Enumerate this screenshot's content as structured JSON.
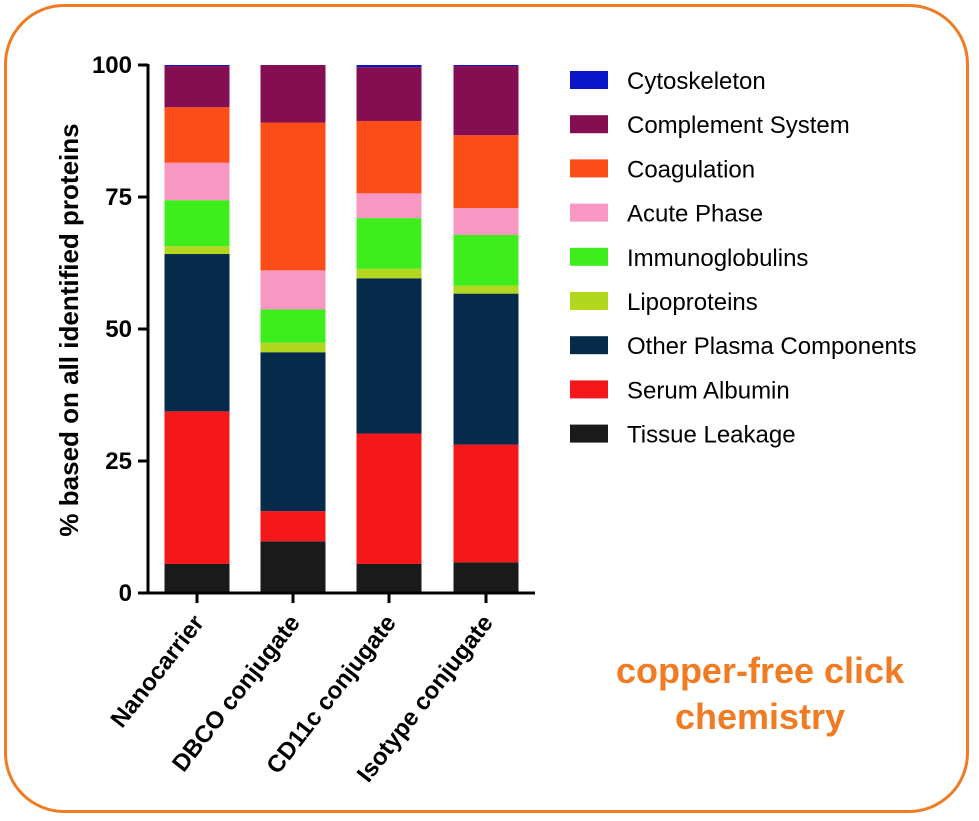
{
  "chart_data": {
    "type": "bar",
    "stacked": true,
    "categories": [
      "Nanocarrier",
      "DBCO conjugate",
      "CD11c conjugate",
      "Isotype conjugate"
    ],
    "ylabel": "% based on all identified proteins",
    "ylim": [
      0,
      100
    ],
    "yticks": [
      0,
      25,
      50,
      75,
      100
    ],
    "series": [
      {
        "name": "Tissue Leakage",
        "color": "#1a1a1a",
        "values": [
          5.5,
          9.8,
          5.5,
          5.8
        ]
      },
      {
        "name": "Serum Albumin",
        "color": "#f5181a",
        "values": [
          28.9,
          5.7,
          24.7,
          22.3
        ]
      },
      {
        "name": "Other Plasma Components",
        "color": "#052a4a",
        "values": [
          29.8,
          30.1,
          29.4,
          28.6
        ]
      },
      {
        "name": "Lipoproteins",
        "color": "#b3d61e",
        "values": [
          1.5,
          1.8,
          1.8,
          1.5
        ]
      },
      {
        "name": "Immunoglobulins",
        "color": "#3ded1c",
        "values": [
          8.7,
          6.3,
          9.6,
          9.6
        ]
      },
      {
        "name": "Acute Phase",
        "color": "#f897c3",
        "values": [
          7.1,
          7.4,
          4.7,
          5.1
        ]
      },
      {
        "name": "Coagulation",
        "color": "#fa4d17",
        "values": [
          10.5,
          28.0,
          13.7,
          13.8
        ]
      },
      {
        "name": "Complement System",
        "color": "#850e52",
        "values": [
          7.8,
          10.9,
          10.2,
          13.1
        ]
      },
      {
        "name": "Cytoskeleton",
        "color": "#0a16c8",
        "values": [
          0.2,
          0.0,
          0.4,
          0.2
        ]
      }
    ],
    "legend_order": [
      "Cytoskeleton",
      "Complement System",
      "Coagulation",
      "Acute Phase",
      "Immunoglobulins",
      "Lipoproteins",
      "Other Plasma Components",
      "Serum Albumin",
      "Tissue Leakage"
    ],
    "legend_position": "right",
    "grid": false
  },
  "annotation": {
    "line1": "copper-free click",
    "line2": "chemistry"
  },
  "colors": {
    "frame": "#f07b22",
    "annotation": "#f07b22"
  }
}
